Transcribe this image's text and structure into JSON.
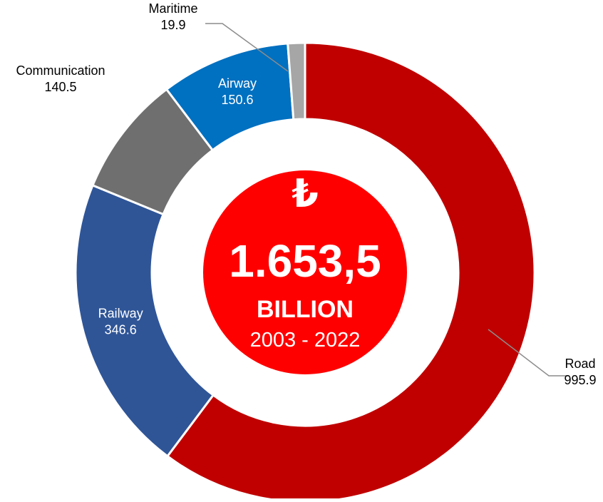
{
  "chart_data": {
    "type": "pie",
    "variant": "donut",
    "slices": [
      {
        "label": "Road",
        "value": 995.9,
        "value_text": "995.9",
        "color": "#C00000",
        "label_placement": "outside"
      },
      {
        "label": "Railway",
        "value": 346.6,
        "value_text": "346.6",
        "color": "#2F5597",
        "label_placement": "inside"
      },
      {
        "label": "Communication",
        "value": 140.5,
        "value_text": "140.5",
        "color": "#6F6F6F",
        "label_placement": "outside"
      },
      {
        "label": "Airway",
        "value": 150.6,
        "value_text": "150.6",
        "color": "#0070C0",
        "label_placement": "inside"
      },
      {
        "label": "Maritime",
        "value": 19.9,
        "value_text": "19.9",
        "color": "#A6A6A6",
        "label_placement": "outside"
      }
    ],
    "direction": "clockwise from top",
    "legend": "none"
  },
  "center": {
    "currency_symbol": "₺",
    "total": "1.653,5",
    "unit": "BILLION",
    "period": "2003 - 2022",
    "color": "#FF0000"
  }
}
